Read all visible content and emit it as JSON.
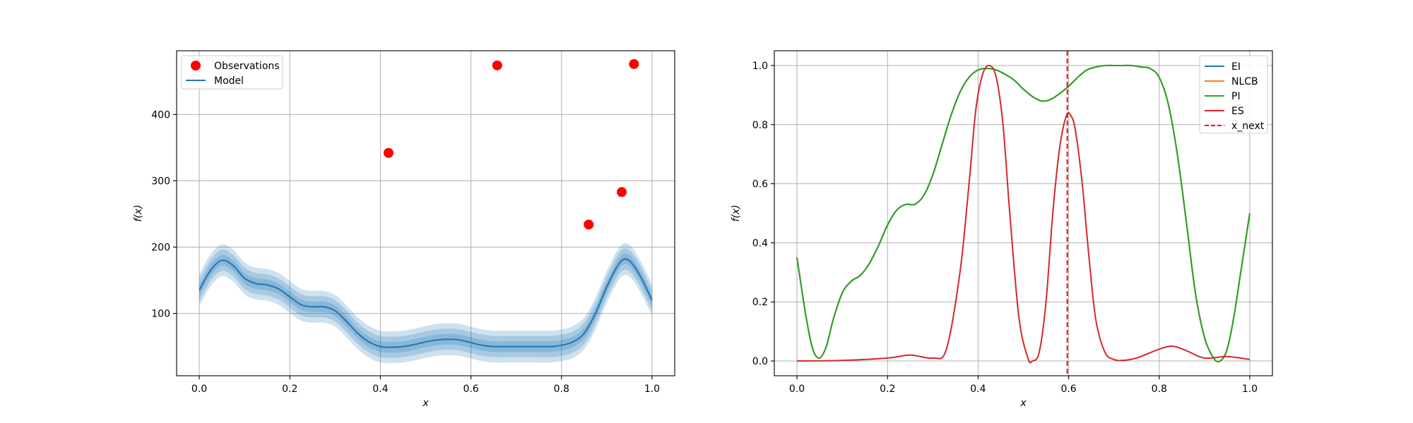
{
  "chart_data": [
    {
      "type": "line",
      "xlabel": "x",
      "ylabel": "f(x)",
      "xlim": [
        -0.05,
        1.05
      ],
      "ylim": [
        6,
        496
      ],
      "xticks": [
        "0.0",
        "0.2",
        "0.4",
        "0.6",
        "0.8",
        "1.0"
      ],
      "yticks": [
        "100",
        "200",
        "300",
        "400"
      ],
      "grid": true,
      "legend_position": "top-left",
      "legend": [
        "Observations",
        "Model"
      ],
      "observations": {
        "name": "Observations",
        "color": "#ff0000",
        "x": [
          0.418,
          0.658,
          0.96,
          0.933,
          0.86
        ],
        "y": [
          342,
          474,
          476,
          283,
          234
        ]
      },
      "model": {
        "name": "Model",
        "color": "#1f77b4",
        "x": [
          0.0,
          0.025,
          0.05,
          0.075,
          0.1,
          0.125,
          0.15,
          0.175,
          0.2,
          0.225,
          0.25,
          0.275,
          0.3,
          0.325,
          0.35,
          0.375,
          0.4,
          0.425,
          0.45,
          0.475,
          0.5,
          0.525,
          0.55,
          0.575,
          0.6,
          0.625,
          0.65,
          0.675,
          0.7,
          0.725,
          0.75,
          0.775,
          0.8,
          0.825,
          0.85,
          0.875,
          0.9,
          0.925,
          0.94,
          0.955,
          0.975,
          1.0
        ],
        "y": [
          135,
          165,
          180,
          172,
          153,
          145,
          143,
          137,
          125,
          113,
          110,
          110,
          104,
          88,
          70,
          57,
          50,
          49,
          50,
          53,
          57,
          60,
          61,
          60,
          56,
          52,
          50,
          50,
          50,
          50,
          50,
          50,
          52,
          57,
          70,
          100,
          140,
          173,
          182,
          176,
          155,
          120
        ],
        "band_widths": [
          8,
          16,
          24
        ]
      }
    },
    {
      "type": "line",
      "xlabel": "x",
      "ylabel": "f(x)",
      "xlim": [
        -0.05,
        1.05
      ],
      "ylim": [
        -0.05,
        1.05
      ],
      "xticks": [
        "0.0",
        "0.2",
        "0.4",
        "0.6",
        "0.8",
        "1.0"
      ],
      "yticks": [
        "0.0",
        "0.2",
        "0.4",
        "0.6",
        "0.8",
        "1.0"
      ],
      "grid": true,
      "legend_position": "top-right",
      "legend": [
        "EI",
        "NLCB",
        "PI",
        "ES",
        "x_next"
      ],
      "x": [
        0.0,
        0.02,
        0.035,
        0.05,
        0.065,
        0.08,
        0.1,
        0.12,
        0.14,
        0.16,
        0.18,
        0.2,
        0.22,
        0.24,
        0.26,
        0.28,
        0.3,
        0.32,
        0.34,
        0.36,
        0.38,
        0.4,
        0.42,
        0.44,
        0.46,
        0.48,
        0.5,
        0.52,
        0.54,
        0.56,
        0.58,
        0.6,
        0.62,
        0.64,
        0.66,
        0.68,
        0.7,
        0.72,
        0.74,
        0.76,
        0.78,
        0.8,
        0.82,
        0.84,
        0.86,
        0.88,
        0.9,
        0.92,
        0.935,
        0.95,
        0.965,
        0.98,
        1.0
      ],
      "series": [
        {
          "name": "EI",
          "color": "#1f77b4",
          "values": [
            0.35,
            0.15,
            0.04,
            0.01,
            0.05,
            0.14,
            0.23,
            0.27,
            0.29,
            0.33,
            0.39,
            0.46,
            0.51,
            0.53,
            0.53,
            0.56,
            0.63,
            0.73,
            0.83,
            0.91,
            0.96,
            0.985,
            0.99,
            0.985,
            0.97,
            0.95,
            0.92,
            0.895,
            0.88,
            0.885,
            0.905,
            0.93,
            0.96,
            0.985,
            0.995,
            1.0,
            1.0,
            1.0,
            1.0,
            0.995,
            0.99,
            0.96,
            0.87,
            0.7,
            0.47,
            0.23,
            0.08,
            0.01,
            0.0,
            0.04,
            0.15,
            0.3,
            0.5
          ]
        },
        {
          "name": "NLCB",
          "color": "#ff7f0e",
          "values": [
            0.35,
            0.15,
            0.04,
            0.01,
            0.05,
            0.14,
            0.23,
            0.27,
            0.29,
            0.33,
            0.39,
            0.46,
            0.51,
            0.53,
            0.53,
            0.56,
            0.63,
            0.73,
            0.83,
            0.91,
            0.96,
            0.985,
            0.99,
            0.985,
            0.97,
            0.95,
            0.92,
            0.895,
            0.88,
            0.885,
            0.905,
            0.93,
            0.96,
            0.985,
            0.995,
            1.0,
            1.0,
            1.0,
            1.0,
            0.995,
            0.99,
            0.96,
            0.87,
            0.7,
            0.47,
            0.23,
            0.08,
            0.01,
            0.0,
            0.04,
            0.15,
            0.3,
            0.5
          ]
        },
        {
          "name": "PI",
          "color": "#2ca02c",
          "values": [
            0.35,
            0.15,
            0.04,
            0.01,
            0.05,
            0.14,
            0.23,
            0.27,
            0.29,
            0.33,
            0.39,
            0.46,
            0.51,
            0.53,
            0.53,
            0.56,
            0.63,
            0.73,
            0.83,
            0.91,
            0.96,
            0.985,
            0.99,
            0.985,
            0.97,
            0.95,
            0.92,
            0.895,
            0.88,
            0.885,
            0.905,
            0.93,
            0.96,
            0.985,
            0.995,
            1.0,
            1.0,
            1.0,
            1.0,
            0.995,
            0.99,
            0.96,
            0.87,
            0.7,
            0.47,
            0.23,
            0.08,
            0.01,
            0.0,
            0.04,
            0.15,
            0.3,
            0.5
          ]
        },
        {
          "name": "ES",
          "color": "#d62728",
          "x": [
            0.0,
            0.1,
            0.2,
            0.25,
            0.3,
            0.33,
            0.36,
            0.38,
            0.395,
            0.41,
            0.425,
            0.44,
            0.455,
            0.47,
            0.49,
            0.51,
            0.52,
            0.535,
            0.55,
            0.565,
            0.58,
            0.595,
            0.605,
            0.615,
            0.63,
            0.645,
            0.66,
            0.68,
            0.7,
            0.72,
            0.75,
            0.8,
            0.83,
            0.86,
            0.9,
            0.95,
            1.0
          ],
          "values": [
            0.0,
            0.002,
            0.01,
            0.02,
            0.01,
            0.04,
            0.3,
            0.6,
            0.85,
            0.97,
            1.0,
            0.96,
            0.8,
            0.5,
            0.15,
            0.01,
            0.0,
            0.03,
            0.2,
            0.5,
            0.72,
            0.83,
            0.83,
            0.78,
            0.6,
            0.35,
            0.14,
            0.03,
            0.005,
            0.002,
            0.01,
            0.04,
            0.05,
            0.035,
            0.01,
            0.015,
            0.005
          ]
        }
      ],
      "x_next": {
        "name": "x_next",
        "x": 0.597,
        "color": "#ff0000"
      }
    }
  ]
}
